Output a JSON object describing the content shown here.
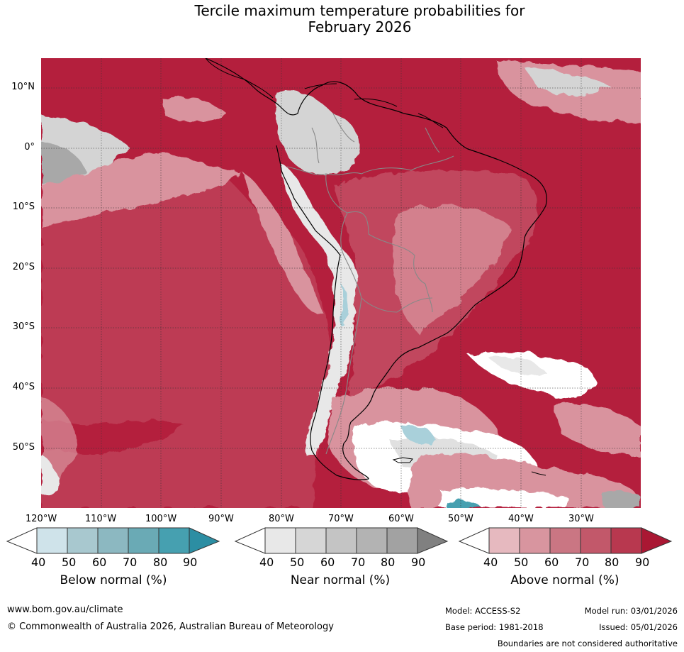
{
  "title_line1": "Tercile maximum temperature probabilities for",
  "title_line2": "February 2026",
  "lat_labels": [
    "10°N",
    "0°",
    "10°S",
    "20°S",
    "30°S",
    "40°S",
    "50°S"
  ],
  "lon_labels": [
    "120°W",
    "110°W",
    "100°W",
    "90°W",
    "80°W",
    "70°W",
    "60°W",
    "50°W",
    "40°W",
    "30°W"
  ],
  "colorbars": [
    {
      "label": "Below normal (%)",
      "ticks": [
        "40",
        "50",
        "60",
        "70",
        "80",
        "90"
      ],
      "colors": [
        "#ffffff",
        "#cfe3ea",
        "#a8c8cf",
        "#8cb8c1",
        "#6aaab5",
        "#46a0b0",
        "#2c8ea3"
      ]
    },
    {
      "label": "Near normal (%)",
      "ticks": [
        "40",
        "50",
        "60",
        "70",
        "80",
        "90"
      ],
      "colors": [
        "#ffffff",
        "#e8e8e8",
        "#d6d6d6",
        "#c4c4c4",
        "#b3b3b3",
        "#a2a2a2",
        "#808080"
      ]
    },
    {
      "label": "Above normal (%)",
      "ticks": [
        "40",
        "50",
        "60",
        "70",
        "80",
        "90"
      ],
      "colors": [
        "#ffffff",
        "#e6b9bf",
        "#d8959f",
        "#ca7683",
        "#c2586a",
        "#b8384f",
        "#aa1733"
      ]
    }
  ],
  "footer": {
    "website": "www.bom.gov.au/climate",
    "copyright": "© Commonwealth of Australia 2026, Australian Bureau of Meteorology",
    "model": "Model: ACCESS-S2",
    "base_period": "Base period: 1981-2018",
    "model_run": "Model run: 03/01/2026",
    "issued": "Issued: 05/01/2026",
    "boundaries": "Boundaries are not considered authoritative"
  },
  "colors": {
    "above_high": "#b41f3d",
    "above_mid": "#c45366",
    "above_low": "#d9939e",
    "near": "#d4d4d4",
    "below": "#a9d0da"
  }
}
